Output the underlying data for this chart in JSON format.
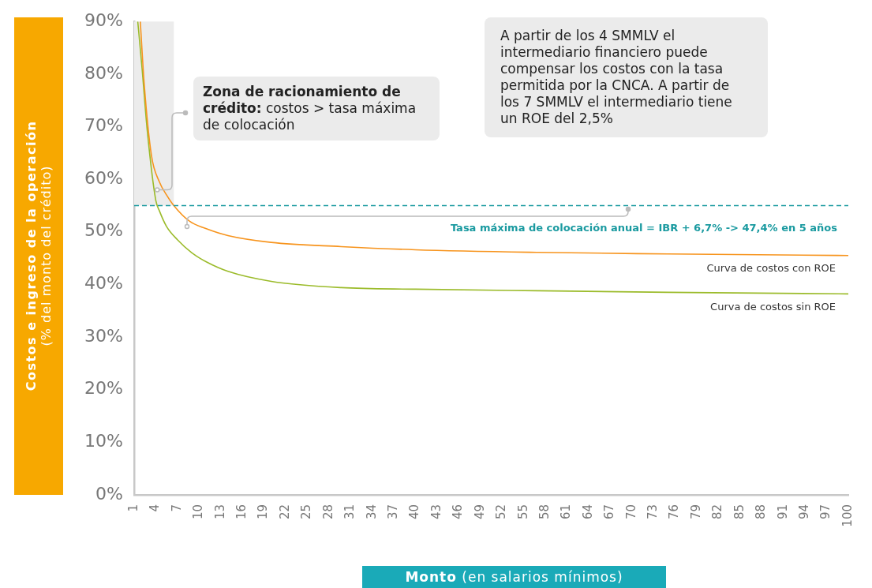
{
  "chart_data": {
    "type": "line",
    "xlabel": "Monto (en salarios mínimos)",
    "ylabel": "Costos e ingreso de la operación (% del monto del crédito)",
    "xlim": [
      1,
      100
    ],
    "xticks": [
      1,
      4,
      7,
      10,
      13,
      16,
      19,
      22,
      25,
      28,
      31,
      34,
      37,
      40,
      43,
      46,
      49,
      52,
      55,
      58,
      61,
      64,
      67,
      70,
      73,
      76,
      79,
      82,
      85,
      88,
      91,
      94,
      97,
      100
    ],
    "ylim": [
      0,
      90
    ],
    "yticks": [
      {
        "value": 0,
        "label": "0%"
      },
      {
        "value": 10,
        "label": "10%"
      },
      {
        "value": 20,
        "label": "20%"
      },
      {
        "value": 30,
        "label": "30%"
      },
      {
        "value": 40,
        "label": "40%"
      },
      {
        "value": 50,
        "label": "50%"
      },
      {
        "value": 60,
        "label": "60%"
      },
      {
        "value": 70,
        "label": "70%"
      },
      {
        "value": 80,
        "label": "80%"
      },
      {
        "value": 90,
        "label": "90%"
      }
    ],
    "grid": false,
    "legend": false,
    "marker": "none",
    "line_style": "solid",
    "series": [
      {
        "name": "Curva de costos con ROE",
        "color": "#f7941d",
        "x": [
          1.85,
          2.4,
          3.4,
          4.5,
          5.5,
          6.5,
          8.7,
          11,
          14,
          20,
          29.7,
          40,
          57,
          75,
          100
        ],
        "values": [
          90,
          78,
          64.5,
          59.5,
          57,
          55,
          52,
          50.6,
          49.3,
          48,
          47.2,
          46.6,
          46.1,
          45.8,
          45.5
        ]
      },
      {
        "name": "Curva de costos sin ROE",
        "color": "#9bbb2a",
        "x": [
          1.5,
          2.1,
          2.8,
          4,
          4.5,
          5.5,
          7,
          9,
          11,
          14,
          20,
          29.7,
          40,
          57,
          75,
          100
        ],
        "values": [
          90,
          81,
          69.5,
          56,
          54,
          51,
          48.5,
          46,
          44.3,
          42.5,
          40.6,
          39.4,
          39.1,
          38.8,
          38.5,
          38.2
        ]
      }
    ],
    "ref_lines": [
      {
        "axis": "y",
        "value": 55,
        "label": "Tasa máxima de colocación anual = IBR + 6,7% -> 47,4% en 5 años",
        "color": "#1a9aa0",
        "line_style": "dashed"
      }
    ],
    "bands": [
      {
        "axis": "x",
        "from": 1,
        "to": 6.5,
        "color": "#ececec"
      }
    ],
    "annotations": [
      {
        "text": "Zona de racionamiento de crédito: costos > tasa máxima de colocación",
        "x": 4.2,
        "y": 58
      },
      "A partir de los 4 SMMLV el intermediario financiero puede compensar los costos con la tasa permitida por la CNCA. A partir de los 7 SMMLV el intermediario tiene un ROE del 2,5%"
    ]
  }
}
